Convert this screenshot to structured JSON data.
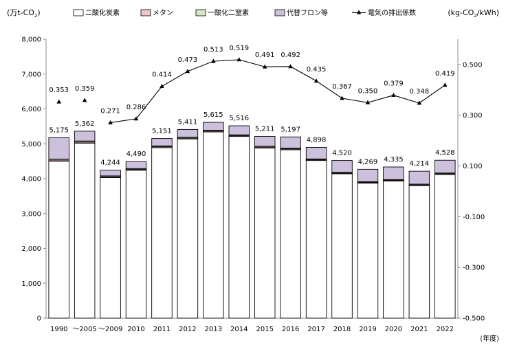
{
  "chart_data": {
    "type": "bar",
    "stacked": true,
    "unit_left": "(万t-CO",
    "unit_left_sub": "2",
    "unit_left_close": ")",
    "unit_right": "(kg-CO",
    "unit_right_sub": "2",
    "unit_right_close": "/kWh)",
    "x_unit": "(年度)",
    "categories": [
      "1990",
      "～2005",
      "～2009",
      "2010",
      "2011",
      "2012",
      "2013",
      "2014",
      "2015",
      "2016",
      "2017",
      "2018",
      "2019",
      "2020",
      "2021",
      "2022"
    ],
    "totals": [
      5175,
      5362,
      4244,
      4490,
      5151,
      5411,
      5615,
      5516,
      5211,
      5197,
      4898,
      4520,
      4269,
      4335,
      4214,
      4528
    ],
    "total_labels": [
      "5,175",
      "5,362",
      "4,244",
      "4,490",
      "5,151",
      "5,411",
      "5,615",
      "5,516",
      "5,211",
      "5,197",
      "4,898",
      "4,520",
      "4,269",
      "4,335",
      "4,214",
      "4,528"
    ],
    "series": [
      {
        "name": "二酸化炭素",
        "color": "#ffffff",
        "values": [
          4500,
          5020,
          4030,
          4240,
          4890,
          5140,
          5340,
          5210,
          4880,
          4830,
          4520,
          4140,
          3870,
          3930,
          3800,
          4120
        ]
      },
      {
        "name": "メタン",
        "color": "#f4c4cc",
        "values": [
          32,
          30,
          25,
          25,
          25,
          25,
          25,
          24,
          24,
          24,
          23,
          22,
          22,
          21,
          21,
          21
        ]
      },
      {
        "name": "一酸化二窒素",
        "color": "#d4e8c4",
        "values": [
          30,
          30,
          25,
          25,
          25,
          25,
          25,
          24,
          24,
          24,
          23,
          22,
          22,
          22,
          22,
          22
        ]
      },
      {
        "name": "代替フロン等",
        "color": "#ccc0dc",
        "values": [
          613,
          282,
          164,
          200,
          211,
          221,
          225,
          258,
          283,
          319,
          332,
          336,
          355,
          362,
          371,
          365
        ]
      }
    ],
    "line_series": {
      "name": "電気の排出係数",
      "values": [
        0.353,
        0.359,
        0.271,
        0.286,
        0.414,
        0.473,
        0.513,
        0.519,
        0.491,
        0.492,
        0.435,
        0.367,
        0.35,
        0.379,
        0.348,
        0.419
      ],
      "labels": [
        "0.353",
        "0.359",
        "0.271",
        "0.286",
        "0.414",
        "0.473",
        "0.513",
        "0.519",
        "0.491",
        "0.492",
        "0.435",
        "0.367",
        "0.350",
        "0.379",
        "0.348",
        "0.419"
      ],
      "connect_from_index": 2
    },
    "ylim_left": [
      0,
      8000
    ],
    "yticks_left": [
      0,
      1000,
      2000,
      3000,
      4000,
      5000,
      6000,
      7000,
      8000
    ],
    "yticks_left_labels": [
      "0",
      "1,000",
      "2,000",
      "3,000",
      "4,000",
      "5,000",
      "6,000",
      "7,000",
      "8,000"
    ],
    "ylim_right": [
      -0.5,
      0.6
    ],
    "yticks_right": [
      -0.5,
      -0.3,
      -0.1,
      0.1,
      0.3,
      0.5
    ],
    "yticks_right_labels": [
      "-0.500",
      "-0.300",
      "-0.100",
      "0.100",
      "0.300",
      "0.500"
    ],
    "grid": false,
    "legend_position": "top"
  }
}
